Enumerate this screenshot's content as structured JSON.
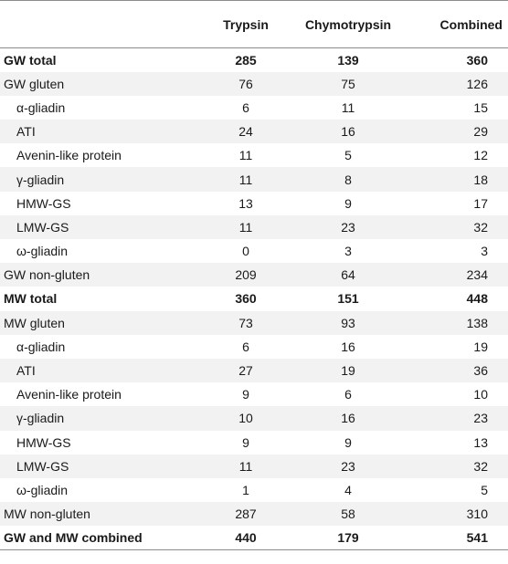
{
  "table": {
    "headers": [
      "",
      "Trypsin",
      "Chymotrypsin",
      "Combined"
    ],
    "rows": [
      {
        "label": "GW total",
        "values": [
          "285",
          "139",
          "360"
        ],
        "bold": true,
        "indent": false
      },
      {
        "label": "GW gluten",
        "values": [
          "76",
          "75",
          "126"
        ],
        "bold": false,
        "indent": false
      },
      {
        "label": "α-gliadin",
        "values": [
          "6",
          "11",
          "15"
        ],
        "bold": false,
        "indent": true
      },
      {
        "label": "ATI",
        "values": [
          "24",
          "16",
          "29"
        ],
        "bold": false,
        "indent": true
      },
      {
        "label": "Avenin-like protein",
        "values": [
          "11",
          "5",
          "12"
        ],
        "bold": false,
        "indent": true
      },
      {
        "label": "γ-gliadin",
        "values": [
          "11",
          "8",
          "18"
        ],
        "bold": false,
        "indent": true
      },
      {
        "label": "HMW-GS",
        "values": [
          "13",
          "9",
          "17"
        ],
        "bold": false,
        "indent": true
      },
      {
        "label": "LMW-GS",
        "values": [
          "11",
          "23",
          "32"
        ],
        "bold": false,
        "indent": true
      },
      {
        "label": "ω-gliadin",
        "values": [
          "0",
          "3",
          "3"
        ],
        "bold": false,
        "indent": true
      },
      {
        "label": "GW non-gluten",
        "values": [
          "209",
          "64",
          "234"
        ],
        "bold": false,
        "indent": false
      },
      {
        "label": "MW total",
        "values": [
          "360",
          "151",
          "448"
        ],
        "bold": true,
        "indent": false
      },
      {
        "label": "MW gluten",
        "values": [
          "73",
          "93",
          "138"
        ],
        "bold": false,
        "indent": false
      },
      {
        "label": "α-gliadin",
        "values": [
          "6",
          "16",
          "19"
        ],
        "bold": false,
        "indent": true
      },
      {
        "label": "ATI",
        "values": [
          "27",
          "19",
          "36"
        ],
        "bold": false,
        "indent": true
      },
      {
        "label": "Avenin-like protein",
        "values": [
          "9",
          "6",
          "10"
        ],
        "bold": false,
        "indent": true
      },
      {
        "label": "γ-gliadin",
        "values": [
          "10",
          "16",
          "23"
        ],
        "bold": false,
        "indent": true
      },
      {
        "label": "HMW-GS",
        "values": [
          "9",
          "9",
          "13"
        ],
        "bold": false,
        "indent": true
      },
      {
        "label": "LMW-GS",
        "values": [
          "11",
          "23",
          "32"
        ],
        "bold": false,
        "indent": true
      },
      {
        "label": "ω-gliadin",
        "values": [
          "1",
          "4",
          "5"
        ],
        "bold": false,
        "indent": true
      },
      {
        "label": "MW non-gluten",
        "values": [
          "287",
          "58",
          "310"
        ],
        "bold": false,
        "indent": false
      },
      {
        "label": "GW and MW combined",
        "values": [
          "440",
          "179",
          "541"
        ],
        "bold": true,
        "indent": false
      }
    ]
  }
}
